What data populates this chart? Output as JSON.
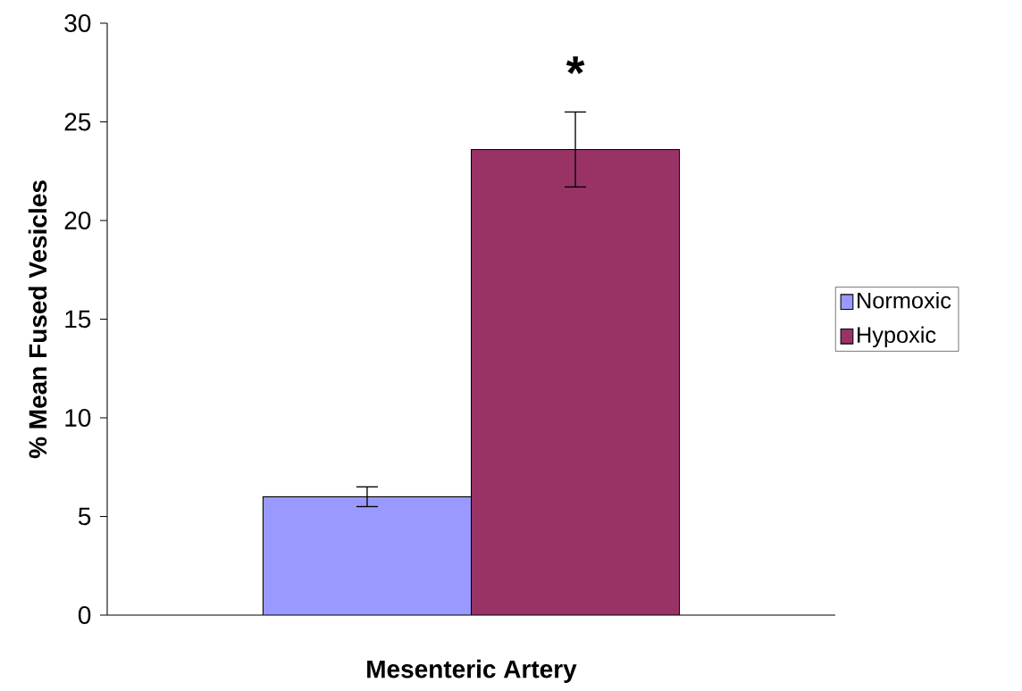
{
  "chart_data": {
    "type": "bar",
    "ylabel": "% Mean Fused Vesicles",
    "xlabel": "Mesenteric Artery",
    "categories": [
      null
    ],
    "series": [
      {
        "name": "Normoxic",
        "color": "#9999ff",
        "values": [
          6.0
        ],
        "errors": [
          0.5
        ]
      },
      {
        "name": "Hypoxic",
        "color": "#993366",
        "values": [
          23.6
        ],
        "errors": [
          1.9
        ]
      }
    ],
    "ylim": [
      0,
      30
    ],
    "yticks": [
      0,
      5,
      10,
      15,
      20,
      25,
      30
    ],
    "legend": "right",
    "annotations": [
      "*"
    ]
  }
}
